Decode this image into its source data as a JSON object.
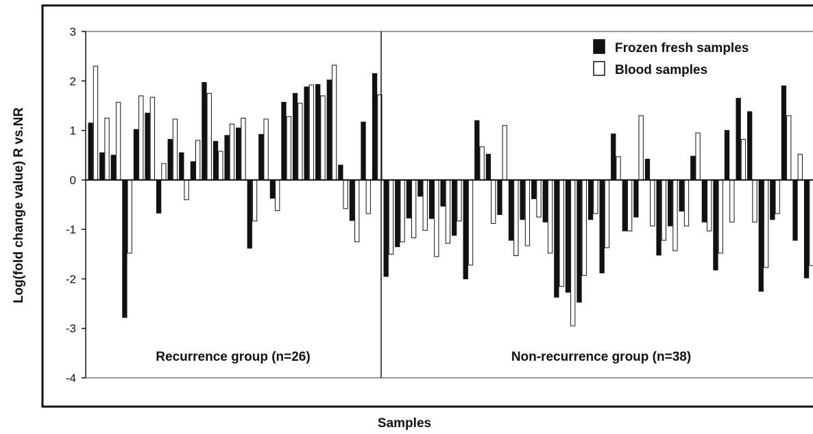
{
  "chart_data": {
    "type": "bar",
    "title": "",
    "xlabel": "Samples",
    "ylabel": "Log(fold change value) R vs.NR",
    "ylim": [
      -4,
      3
    ],
    "yticks": [
      "3",
      "2",
      "1",
      "0",
      "-1",
      "-2",
      "-3",
      "-4"
    ],
    "grid": false,
    "legend_position": "top-right",
    "colors": {
      "frozen": "#111111",
      "blood": "#ffffff",
      "outline": "#111111"
    },
    "groups": [
      {
        "label": "Recurrence group (n=26)",
        "count": 26
      },
      {
        "label": "Non-recurrence group (n=38)",
        "count": 38
      }
    ],
    "series": [
      {
        "name": "Frozen fresh samples",
        "values": [
          1.15,
          0.55,
          0.5,
          -2.78,
          1.02,
          1.35,
          -0.67,
          0.82,
          0.55,
          0.37,
          1.97,
          0.78,
          0.9,
          1.05,
          -1.38,
          0.92,
          -0.37,
          1.57,
          1.75,
          1.88,
          1.93,
          2.02,
          0.3,
          -0.82,
          1.17,
          2.15,
          -1.95,
          -1.35,
          -0.77,
          -0.33,
          -0.78,
          -0.53,
          -1.12,
          -2.0,
          1.2,
          0.52,
          -0.7,
          -1.22,
          -0.8,
          -0.38,
          -0.85,
          -2.37,
          -2.27,
          -2.47,
          -0.8,
          -1.88,
          0.93,
          -1.03,
          -0.75,
          0.42,
          -1.52,
          -0.93,
          -0.63,
          0.48,
          -0.85,
          -1.82,
          1.0,
          1.65,
          1.38,
          -2.25,
          -0.8,
          1.9,
          -1.22,
          -1.98
        ]
      },
      {
        "name": "Blood samples",
        "values": [
          2.3,
          1.25,
          1.57,
          -1.48,
          1.7,
          1.67,
          0.33,
          1.23,
          -0.4,
          0.8,
          1.75,
          0.58,
          1.13,
          1.25,
          -0.83,
          1.23,
          -0.62,
          1.28,
          1.55,
          1.92,
          1.7,
          2.32,
          -0.58,
          -1.25,
          -0.68,
          1.72,
          -1.5,
          -1.25,
          -1.17,
          -1.02,
          -1.55,
          -1.28,
          -0.83,
          -1.72,
          0.67,
          -0.88,
          1.1,
          -1.53,
          -1.33,
          -0.75,
          -1.48,
          -2.15,
          -2.95,
          -1.93,
          -0.68,
          -1.37,
          0.47,
          -1.03,
          1.3,
          -0.93,
          -1.22,
          -1.43,
          -0.93,
          0.95,
          -1.03,
          -1.48,
          -0.85,
          0.82,
          -0.85,
          -1.77,
          -0.68,
          1.3,
          0.52,
          -1.73
        ]
      }
    ]
  }
}
